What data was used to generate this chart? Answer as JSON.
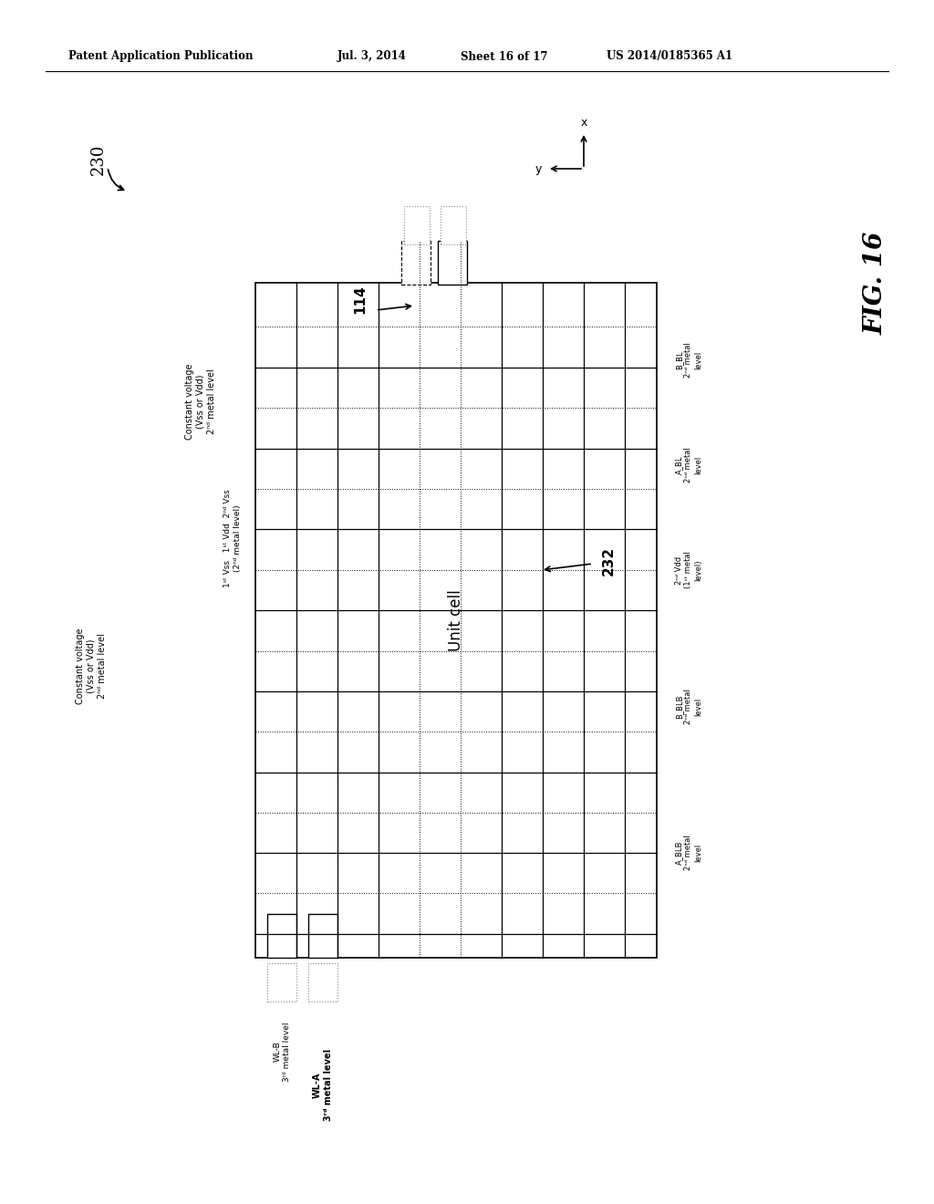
{
  "bg_color": "#ffffff",
  "header_text": "Patent Application Publication",
  "header_date": "Jul. 3, 2014",
  "header_sheet": "Sheet 16 of 17",
  "header_patent": "US 2014/0185365 A1",
  "fig_label": "FIG. 16",
  "diagram_label": "230"
}
